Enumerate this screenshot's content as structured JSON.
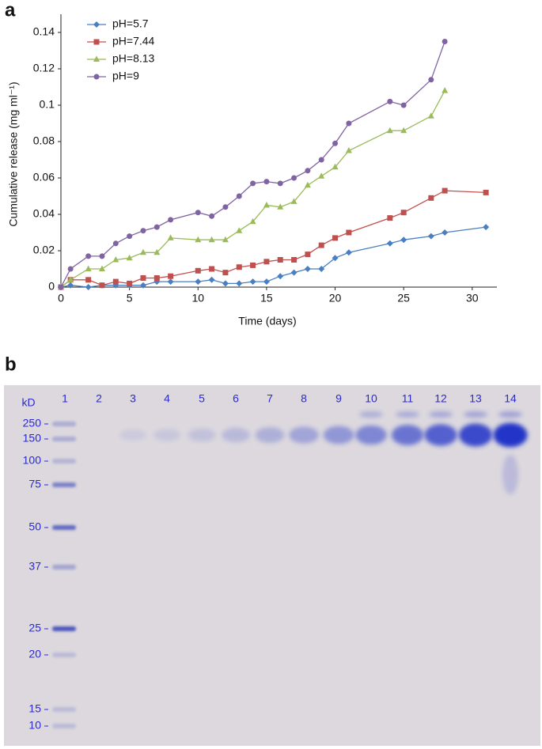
{
  "chart_data": {
    "type": "line",
    "panel_label": "a",
    "xlabel": "Time (days)",
    "ylabel": "Cumulative release (mg ml⁻¹)",
    "x": [
      0,
      0.7,
      2,
      3,
      4,
      5,
      6,
      7,
      8,
      10,
      11,
      12,
      13,
      14,
      15,
      16,
      17,
      18,
      19,
      20,
      21,
      24,
      25,
      27,
      28,
      31
    ],
    "xlim": [
      0,
      31.8
    ],
    "xticks": [
      0,
      5,
      10,
      15,
      20,
      25,
      30
    ],
    "ylim": [
      0,
      0.15
    ],
    "yticks": [
      0,
      0.02,
      0.04,
      0.06,
      0.08,
      0.1,
      0.12,
      0.14
    ],
    "legend": "upper left",
    "series": [
      {
        "name": "pH=5.7",
        "color": "#4a7fc1",
        "marker": "diamond",
        "values": [
          0,
          0.001,
          0,
          0.001,
          0.001,
          0.001,
          0.001,
          0.003,
          0.003,
          0.003,
          0.004,
          0.002,
          0.002,
          0.003,
          0.003,
          0.006,
          0.008,
          0.01,
          0.01,
          0.016,
          0.019,
          0.024,
          0.026,
          0.028,
          0.03,
          0.033
        ]
      },
      {
        "name": "pH=7.44",
        "color": "#c0504d",
        "marker": "square",
        "values": [
          0,
          0.004,
          0.004,
          0.001,
          0.003,
          0.002,
          0.005,
          0.005,
          0.006,
          0.009,
          0.01,
          0.008,
          0.011,
          0.012,
          0.014,
          0.015,
          0.015,
          0.018,
          0.023,
          0.027,
          0.03,
          0.038,
          0.041,
          0.049,
          0.053,
          0.052
        ]
      },
      {
        "name": "pH=8.13",
        "color": "#9bbb59",
        "marker": "triangle",
        "values": [
          0,
          0.004,
          0.01,
          0.01,
          0.015,
          0.016,
          0.019,
          0.019,
          0.027,
          0.026,
          0.026,
          0.026,
          0.031,
          0.036,
          0.045,
          0.044,
          0.047,
          0.056,
          0.061,
          0.066,
          0.075,
          0.086,
          0.086,
          0.094,
          0.108,
          null
        ]
      },
      {
        "name": "pH=9",
        "color": "#8064a2",
        "marker": "circle",
        "values": [
          0,
          0.01,
          0.017,
          0.017,
          0.024,
          0.028,
          0.031,
          0.033,
          0.037,
          0.041,
          0.039,
          0.044,
          0.05,
          0.057,
          0.058,
          0.057,
          0.06,
          0.064,
          0.07,
          0.079,
          0.09,
          0.102,
          0.1,
          0.114,
          0.135,
          null
        ]
      }
    ]
  },
  "gel": {
    "panel_label": "b",
    "unit": "kD",
    "lanes": [
      "1",
      "2",
      "3",
      "4",
      "5",
      "6",
      "7",
      "8",
      "9",
      "10",
      "11",
      "12",
      "13",
      "14"
    ],
    "markers": [
      250,
      150,
      100,
      75,
      50,
      37,
      25,
      20,
      15,
      10
    ]
  }
}
